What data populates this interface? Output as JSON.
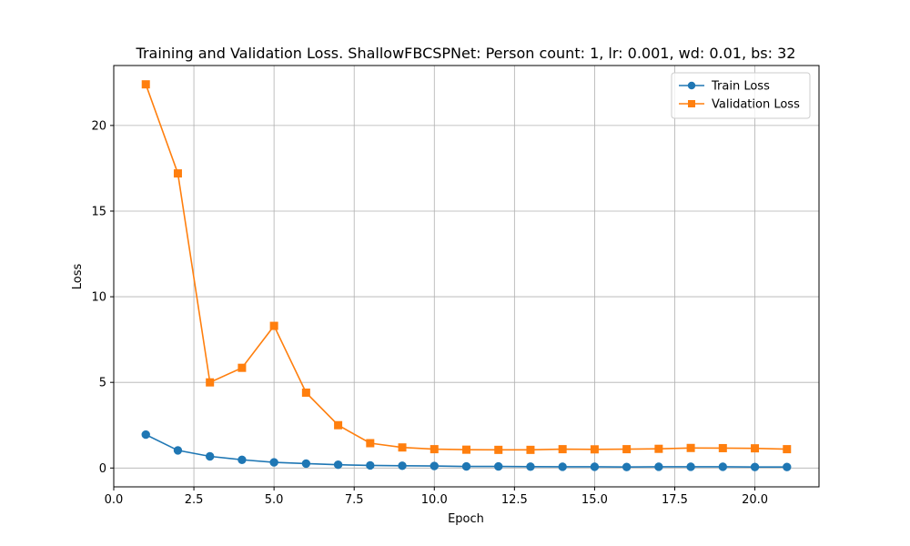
{
  "chart_data": {
    "type": "line",
    "title": "Training and Validation Loss. ShallowFBCSPNet: Person count: 1, lr: 0.001, wd: 0.01, bs: 32",
    "xlabel": "Epoch",
    "ylabel": "Loss",
    "xlim": [
      0.0,
      22.0
    ],
    "ylim": [
      -1.1,
      23.5
    ],
    "xticks": [
      0.0,
      2.5,
      5.0,
      7.5,
      10.0,
      12.5,
      15.0,
      17.5,
      20.0
    ],
    "xtick_labels": [
      "0.0",
      "2.5",
      "5.0",
      "7.5",
      "10.0",
      "12.5",
      "15.0",
      "17.5",
      "20.0"
    ],
    "yticks": [
      0,
      5,
      10,
      15,
      20
    ],
    "ytick_labels": [
      "0",
      "5",
      "10",
      "15",
      "20"
    ],
    "grid": true,
    "legend_position": "top-right",
    "x": [
      1,
      2,
      3,
      4,
      5,
      6,
      7,
      8,
      9,
      10,
      11,
      12,
      13,
      14,
      15,
      16,
      17,
      18,
      19,
      20,
      21
    ],
    "series": [
      {
        "name": "Train Loss",
        "color": "#1f77b4",
        "marker": "circle",
        "values": [
          1.95,
          1.03,
          0.68,
          0.48,
          0.33,
          0.26,
          0.19,
          0.15,
          0.13,
          0.12,
          0.09,
          0.09,
          0.08,
          0.07,
          0.07,
          0.06,
          0.07,
          0.07,
          0.07,
          0.06,
          0.06
        ]
      },
      {
        "name": "Validation Loss",
        "color": "#ff7f0e",
        "marker": "square",
        "values": [
          22.4,
          17.2,
          5.0,
          5.85,
          8.3,
          4.4,
          2.5,
          1.45,
          1.2,
          1.1,
          1.07,
          1.06,
          1.06,
          1.1,
          1.09,
          1.1,
          1.12,
          1.17,
          1.16,
          1.15,
          1.1
        ]
      }
    ]
  }
}
